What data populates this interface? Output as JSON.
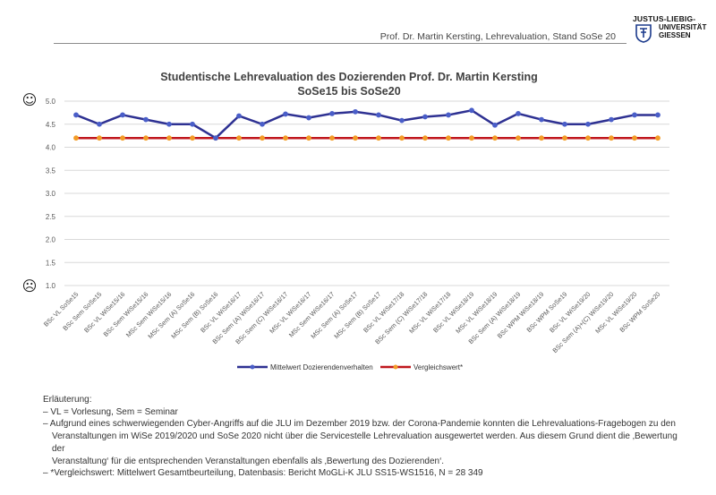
{
  "header": {
    "text": "Prof. Dr. Martin Kersting, Lehrevaluation, Stand SoSe 20",
    "logo": {
      "line1": "JUSTUS-LIEBIG-",
      "line2": "UNIVERSITÄT",
      "line3": "GIESSEN"
    }
  },
  "chart_data": {
    "type": "line",
    "title": "Studentische Lehrevaluation des Dozierenden Prof. Dr. Martin Kersting",
    "subtitle": "SoSe15 bis SoSe20",
    "ylim": [
      1.0,
      5.0
    ],
    "yticks": [
      "5.0",
      "4.5",
      "4.0",
      "3.5",
      "3.0",
      "2.5",
      "2.0",
      "1.5",
      "1.0"
    ],
    "grid": true,
    "legend_placement": "bottom",
    "smileys": {
      "top": "☺",
      "bottom": "☹"
    },
    "categories": [
      "BSc VL SoSe15",
      "BSc Sem SoSe15",
      "BSc VL WiSe15/16",
      "BSc Sem WiSe15/16",
      "MSc Sem WiSe15/16",
      "MSc Sem (A) SoSe16",
      "MSc Sem (B) SoSe16",
      "BSc VL WiSe16/17",
      "BSc Sem (A) WiSe16/17",
      "BSc Sem (C) WiSe16/17",
      "MSc VL WiSe16/17",
      "MSc Sem WiSe16/17",
      "MSc Sem (A) SoSe17",
      "MSc Sem (B) SoSe17",
      "BSc VL WiSe17/18",
      "BSc Sem (C) WiSe17/18",
      "MSc VL WiSe17/18",
      "BSc VL WiSe18/19",
      "MSc VL WiSe18/19",
      "BSc Sem (A) WiSe18/19",
      "BSc WPM WiSe18/19",
      "BSc WPM SoSe19",
      "BSc VL WiSe19/20",
      "BSc Sem (A)+(C) WiSe19/20",
      "MSc VL WiSe19/20",
      "BSc WPM SoSe20"
    ],
    "series": [
      {
        "name": "Mittelwert Dozierendenverhalten",
        "color": "#2e3192",
        "values": [
          4.7,
          4.5,
          4.7,
          4.6,
          4.5,
          4.5,
          4.2,
          4.68,
          4.5,
          4.72,
          4.64,
          4.73,
          4.77,
          4.7,
          4.58,
          4.66,
          4.7,
          4.8,
          4.48,
          4.73,
          4.6,
          4.5,
          4.5,
          4.6,
          4.7,
          4.7
        ]
      },
      {
        "name": "Vergleichswert*",
        "color": "#c0171d",
        "marker_color": "#f39c27",
        "values": [
          4.2,
          4.2,
          4.2,
          4.2,
          4.2,
          4.2,
          4.2,
          4.2,
          4.2,
          4.2,
          4.2,
          4.2,
          4.2,
          4.2,
          4.2,
          4.2,
          4.2,
          4.2,
          4.2,
          4.2,
          4.2,
          4.2,
          4.2,
          4.2,
          4.2,
          4.2
        ]
      }
    ]
  },
  "notes": {
    "heading": "Erläuterung:",
    "items": [
      "– VL = Vorlesung, Sem = Seminar",
      "– Aufgrund eines schwerwiegenden Cyber-Angriffs auf die JLU im Dezember 2019 bzw. der Corona-Pandemie konnten die Lehrevaluations-Fragebogen zu den",
      "Veranstaltungen im WiSe 2019/2020 und SoSe 2020 nicht über die Servicestelle Lehrevaluation ausgewertet werden. Aus diesem Grund dient die ‚Bewertung der",
      "Veranstaltung‘ für die entsprechenden Veranstaltungen ebenfalls als ‚Bewertung des Dozierenden‘.",
      "– *Vergleichswert: Mittelwert Gesamtbeurteilung, Datenbasis: Bericht MoGLi-K JLU SS15-WS1516, N = 28 349"
    ]
  }
}
